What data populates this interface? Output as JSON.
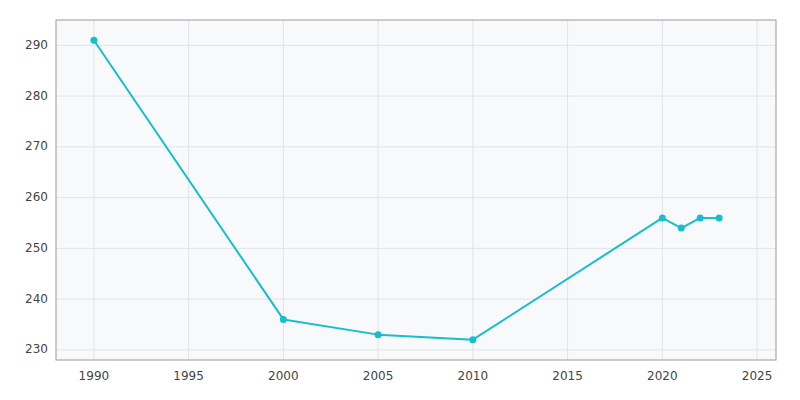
{
  "chart_data": {
    "type": "line",
    "x": [
      1990,
      2000,
      2005,
      2010,
      2020,
      2021,
      2022,
      2023
    ],
    "values": [
      291,
      236,
      233,
      232,
      256,
      254,
      256,
      256
    ],
    "color": "#17becf",
    "marker": "circle",
    "xlim": [
      1988,
      2026
    ],
    "ylim": [
      228,
      295
    ],
    "xticks": [
      1990,
      1995,
      2000,
      2005,
      2010,
      2015,
      2020,
      2025
    ],
    "yticks": [
      230,
      240,
      250,
      260,
      270,
      280,
      290
    ],
    "grid": true
  }
}
